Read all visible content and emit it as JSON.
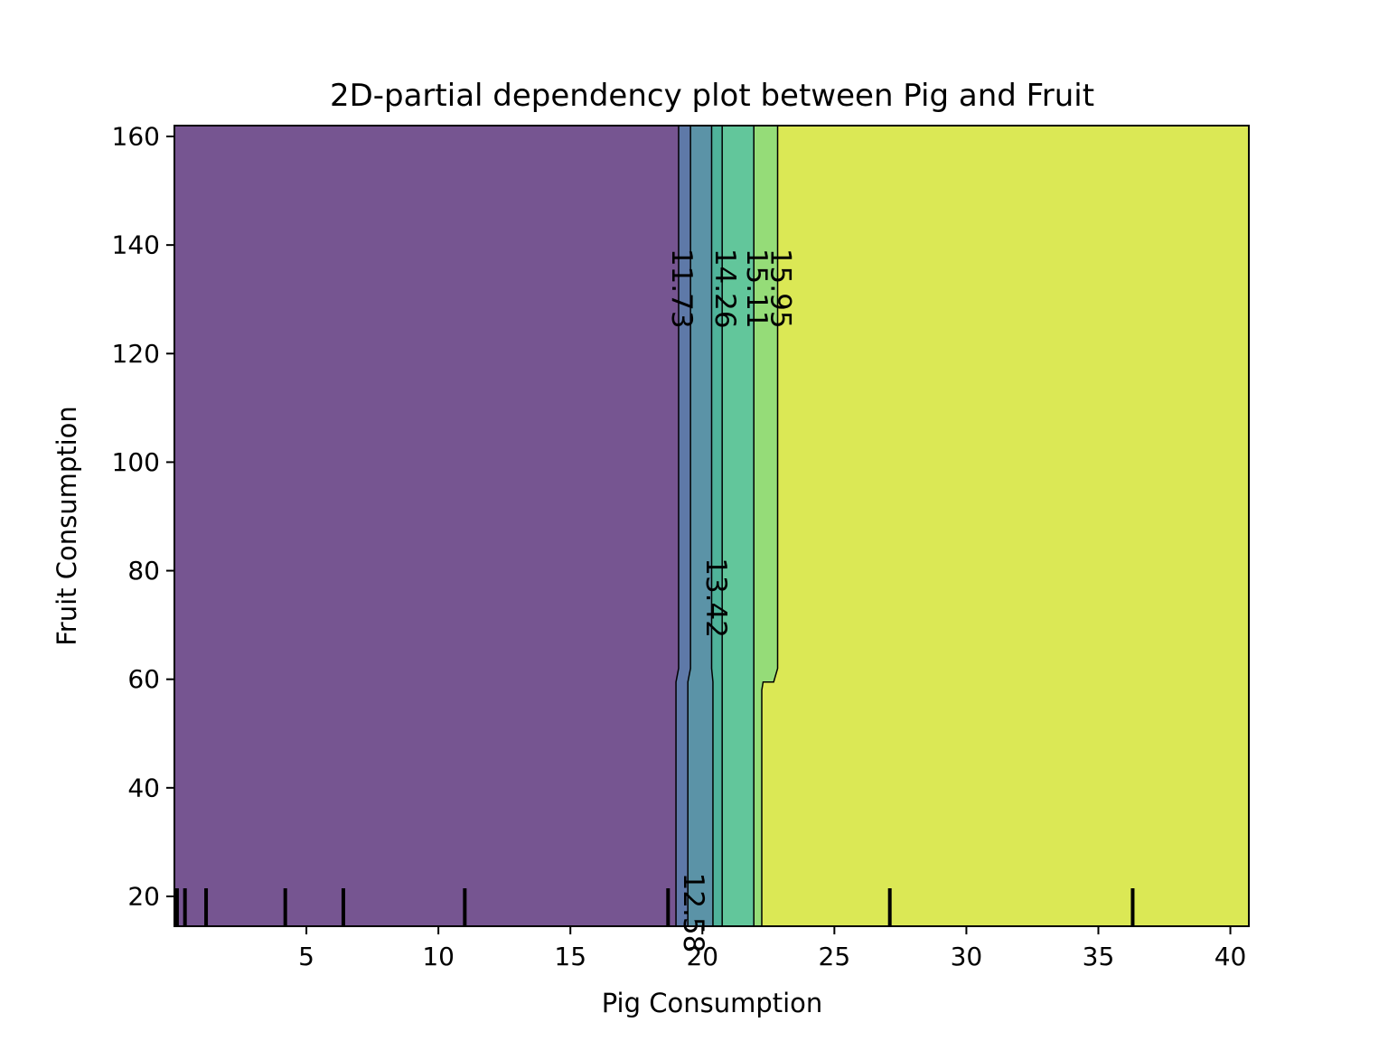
{
  "chart_data": {
    "type": "contour",
    "title": "2D-partial dependency plot between Pig and Fruit",
    "xlabel": "Pig Consumption",
    "ylabel": "Fruit Consumption",
    "xlim": [
      0,
      40.7
    ],
    "ylim": [
      14.5,
      162
    ],
    "xticks": [
      5,
      10,
      15,
      20,
      25,
      30,
      35,
      40
    ],
    "yticks": [
      20,
      40,
      60,
      80,
      100,
      120,
      140,
      160
    ],
    "grid": false,
    "levels": [
      {
        "from": null,
        "to": 11.73,
        "color": "#765591"
      },
      {
        "from": 11.73,
        "to": 12.58,
        "color": "#5e79a8"
      },
      {
        "from": 12.58,
        "to": 13.42,
        "color": "#5b93a7"
      },
      {
        "from": 13.42,
        "to": 14.26,
        "color": "#4fb39a"
      },
      {
        "from": 14.26,
        "to": 15.11,
        "color": "#62c69b"
      },
      {
        "from": 15.11,
        "to": 15.95,
        "color": "#95dc78"
      },
      {
        "from": 15.95,
        "to": null,
        "color": "#dbe855"
      }
    ],
    "contour_lines": [
      {
        "value": 11.73,
        "label": "11.73",
        "points": [
          [
            19.1,
            162
          ],
          [
            19.1,
            62
          ],
          [
            19.0,
            59.5
          ],
          [
            19.0,
            14.5
          ]
        ],
        "label_at": [
          19.2,
          132
        ]
      },
      {
        "value": 12.58,
        "label": "12.58",
        "points": [
          [
            19.55,
            162
          ],
          [
            19.55,
            62
          ],
          [
            19.45,
            59.5
          ],
          [
            19.45,
            14.5
          ]
        ],
        "label_at": [
          19.65,
          17
        ]
      },
      {
        "value": 13.42,
        "label": "13.42",
        "points": [
          [
            20.35,
            162
          ],
          [
            20.35,
            62
          ],
          [
            20.4,
            59.5
          ],
          [
            20.4,
            14.5
          ]
        ],
        "label_at": [
          20.5,
          75
        ]
      },
      {
        "value": 14.26,
        "label": "14.26",
        "points": [
          [
            20.75,
            162
          ],
          [
            20.75,
            62
          ],
          [
            20.75,
            59.5
          ],
          [
            20.75,
            14.5
          ]
        ],
        "label_at": [
          20.85,
          132
        ]
      },
      {
        "value": 15.11,
        "label": "15.11",
        "points": [
          [
            21.95,
            162
          ],
          [
            21.95,
            62
          ],
          [
            21.95,
            59.5
          ],
          [
            21.95,
            14.5
          ]
        ],
        "label_at": [
          22.05,
          132
        ]
      },
      {
        "value": 15.95,
        "label": "15.95",
        "points": [
          [
            22.85,
            162
          ],
          [
            22.85,
            62
          ],
          [
            22.7,
            59.5
          ],
          [
            22.3,
            59.5
          ],
          [
            22.25,
            58
          ],
          [
            22.25,
            14.5
          ]
        ],
        "label_at": [
          22.95,
          132
        ]
      }
    ],
    "rug_x": [
      0.1,
      0.4,
      1.2,
      4.2,
      6.4,
      11.0,
      18.7,
      27.1,
      36.3
    ]
  }
}
